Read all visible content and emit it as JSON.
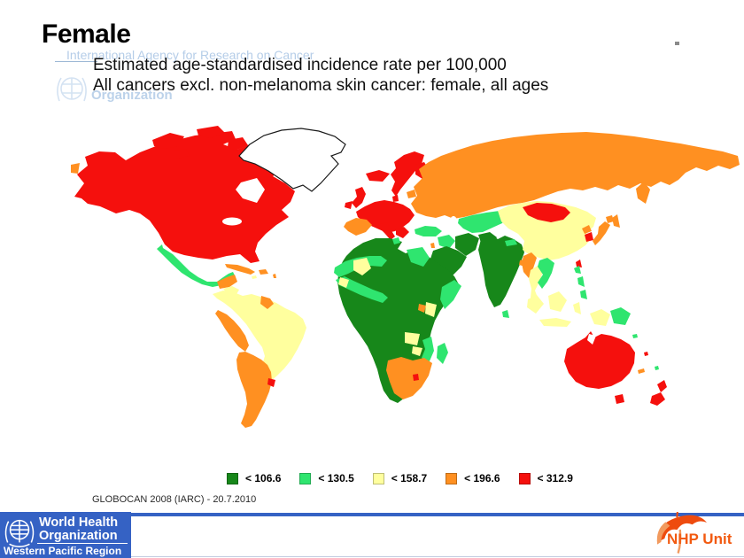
{
  "slide": {
    "title": "Female",
    "watermark": {
      "header": "International Agency for Research on Cancer",
      "org": "Organization"
    },
    "subtitle_line1": "Estimated age-standardised incidence rate per 100,000",
    "subtitle_line2": "All cancers excl. non-melanoma skin cancer: female, all ages",
    "source_note": "GLOBOCAN 2008 (IARC) - 20.7.2010"
  },
  "chart_data": {
    "type": "choropleth",
    "title": "Estimated age-standardised incidence rate per 100,000",
    "subtitle": "All cancers excl. non-melanoma skin cancer: female, all ages",
    "source": "GLOBOCAN 2008 (IARC) - 20.7.2010",
    "legend_position": "bottom-center",
    "categories": [
      {
        "key": "g1",
        "label": "< 106.6",
        "color": "#17871a"
      },
      {
        "key": "g2",
        "label": "< 130.5",
        "color": "#2fe56f"
      },
      {
        "key": "g3",
        "label": "< 158.7",
        "color": "#ffff9e"
      },
      {
        "key": "g4",
        "label": "< 196.6",
        "color": "#ff9021"
      },
      {
        "key": "g5",
        "label": "< 312.9",
        "color": "#f5100d"
      }
    ],
    "regions": {
      "canada-usa": "g5",
      "arctic-islands-1": "g5",
      "arctic-islands-2": "g5",
      "arctic-islands-3": "g5",
      "arctic-islands-4": "g5",
      "greenland": "uncolored",
      "mexico": "g2",
      "guatemala-yucatan": "g4",
      "honduras-nicaragua": "g3",
      "costa-rica": "g5",
      "panama": "g4",
      "cuba": "g4",
      "hispaniola": "g4",
      "jamaica": "g3",
      "lesser-antilles": "g4",
      "colombia-venezuela-brazil": "g3",
      "guyana-suriname": "g4",
      "ecuador-peru": "g4",
      "chile-argentina": "g4",
      "uruguay": "g5",
      "iceland": "g5",
      "uk": "g5",
      "ireland": "g5",
      "norway-sweden": "g5",
      "finland": "g5",
      "denmark": "g5",
      "europe-mainland": "g5",
      "italy": "g5",
      "balkans-greece": "g5",
      "iberia": "g4",
      "baltic-states": "g4",
      "russia": "g4",
      "kamchatka": "g4",
      "sakhalin": "g4",
      "chukotka-west-tip": "g4",
      "turkey": "g2",
      "syria-iraq": "g2",
      "israel": "g4",
      "iran": "g1",
      "saudi-arabia": "g1",
      "central-asia": "g2",
      "afghanistan": "g1",
      "india-pakistan": "g1",
      "nepal": "g2",
      "sri-lanka": "g2",
      "bangladesh": "g4",
      "china": "g3",
      "mongolia": "g5",
      "north-korea": "g4",
      "south-korea": "g5",
      "japan": "g4",
      "hokkaido": "g4",
      "taiwan": "g5",
      "myanmar": "g4",
      "thailand": "g3",
      "vietnam-laos": "g2",
      "philippines-1": "g2",
      "philippines-2": "g2",
      "philippines-3": "g2",
      "sumatra": "g3",
      "borneo": "g3",
      "java": "g3",
      "sulawesi": "g3",
      "west-new-guinea": "g3",
      "papua-new-guinea": "g2",
      "australia": "g5",
      "tasmania": "g5",
      "new-zealand-north": "g5",
      "new-zealand-south": "g5",
      "new-caledonia": "g4",
      "fiji": "g2",
      "solomon-islands": "g2",
      "vanuatu": "g5",
      "africa-main": "g1",
      "west-africa-sahel": "g2",
      "west-africa-coast": "g2",
      "mali": "g3",
      "guinea": "g3",
      "tunisia": "g2",
      "egypt": "g2",
      "somalia": "g2",
      "uganda": "g4",
      "kenya": "g3",
      "zambia": "g3",
      "zimbabwe": "g3",
      "mozambique": "g2",
      "south-africa": "g4",
      "lesotho": "g5",
      "madagascar": "g2"
    }
  },
  "footer": {
    "who_block": {
      "line1": "World Health",
      "line2": "Organization",
      "line3": "Western Pacific Region"
    },
    "nhp_label": "NHP Unit"
  },
  "colors": {
    "footer_blue": "#3562c4",
    "nhp_orange": "#f25a10",
    "umbrella_orange": "#ee4b0e",
    "umbrella_light": "#f29a5e",
    "watermark_blue": "#b5cde8"
  }
}
